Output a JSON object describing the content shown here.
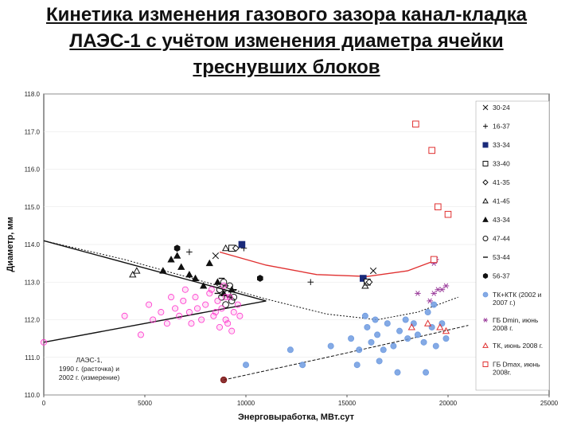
{
  "title_lines": [
    "Кинетика изменения газового зазора канал-кладка",
    "ЛАЭС-1 с учётом изменения диаметра ячейки",
    "треснувших блоков"
  ],
  "chart_data": {
    "type": "scatter",
    "xlabel": "Энерговыработка, МВт.сут",
    "ylabel": "Диаметр, мм",
    "xlim": [
      0,
      25000
    ],
    "ylim": [
      110.0,
      118.0
    ],
    "x_ticks": [
      "0",
      "5000",
      "10000",
      "15000",
      "20000",
      "25000"
    ],
    "y_ticks": [
      "110.0",
      "111.0",
      "112.0",
      "113.0",
      "114.0",
      "115.0",
      "116.0",
      "117.0",
      "118.0"
    ],
    "annotation": [
      "ЛАЭС-1,",
      "1990 г. (расточка) и",
      "2002 г. (измерение)"
    ],
    "colors": {
      "black": "#111111",
      "navy": "#1a2a7a",
      "magenta": "#ff33cc",
      "purple": "#9b3d9b",
      "red": "#e03030",
      "blue": "#6f9be0",
      "darkred": "#7a1010"
    },
    "series": [
      {
        "name": "30-24",
        "marker": "x",
        "color": "#111111",
        "points": [
          [
            8500,
            113.7
          ],
          [
            16300,
            113.3
          ]
        ]
      },
      {
        "name": "16-37",
        "marker": "plus",
        "color": "#111111",
        "points": [
          [
            7200,
            113.8
          ],
          [
            13200,
            113.0
          ],
          [
            9900,
            113.9
          ]
        ]
      },
      {
        "name": "33-34",
        "marker": "square-filled",
        "color": "#1a2a7a",
        "points": [
          [
            9800,
            114.0
          ],
          [
            15800,
            113.1
          ]
        ]
      },
      {
        "name": "33-40",
        "marker": "square-open",
        "color": "#111111",
        "points": [
          [
            9300,
            113.9
          ],
          [
            16000,
            113.0
          ]
        ]
      },
      {
        "name": "41-35",
        "marker": "diamond-open",
        "color": "#111111",
        "points": [
          [
            9500,
            113.9
          ],
          [
            16100,
            113.0
          ]
        ]
      },
      {
        "name": "41-45",
        "marker": "triangle-open",
        "color": "#111111",
        "points": [
          [
            4400,
            113.2
          ],
          [
            9000,
            113.9
          ],
          [
            15900,
            112.9
          ],
          [
            4600,
            113.3
          ]
        ]
      },
      {
        "name": "43-34",
        "marker": "triangle-filled",
        "color": "#111111",
        "points": [
          [
            6300,
            113.6
          ],
          [
            6800,
            113.4
          ],
          [
            7500,
            113.1
          ],
          [
            7900,
            112.9
          ],
          [
            8600,
            113.0
          ],
          [
            8900,
            112.7
          ],
          [
            9300,
            112.8
          ],
          [
            5900,
            113.3
          ],
          [
            7200,
            113.2
          ],
          [
            8200,
            113.5
          ],
          [
            6600,
            113.7
          ]
        ]
      },
      {
        "name": "47-44",
        "marker": "circle-open",
        "color": "#111111",
        "points": [
          [
            8800,
            112.6
          ],
          [
            9200,
            112.9
          ],
          [
            9000,
            112.4
          ],
          [
            9400,
            112.6
          ],
          [
            8700,
            112.8
          ],
          [
            9100,
            112.7
          ],
          [
            8900,
            113.0
          ],
          [
            9300,
            112.5
          ]
        ]
      },
      {
        "name": "53-44",
        "marker": "dash",
        "color": "#111111",
        "points": [
          [
            8600,
            112.7
          ],
          [
            9000,
            112.9
          ],
          [
            9200,
            112.6
          ],
          [
            8800,
            113.1
          ],
          [
            9400,
            112.8
          ]
        ]
      },
      {
        "name": "56-37",
        "marker": "hexagon-filled",
        "color": "#111111",
        "points": [
          [
            6600,
            113.9
          ],
          [
            10700,
            113.1
          ]
        ]
      },
      {
        "name": "ТК+КТК (2002 и 2007 г.)",
        "marker": "circle-filled",
        "color": "#6f9be0",
        "points": [
          [
            10000,
            110.8
          ],
          [
            12200,
            111.2
          ],
          [
            12800,
            110.8
          ],
          [
            14200,
            111.3
          ],
          [
            15200,
            111.5
          ],
          [
            15600,
            111.2
          ],
          [
            16000,
            111.8
          ],
          [
            16200,
            111.4
          ],
          [
            16500,
            111.6
          ],
          [
            16800,
            111.2
          ],
          [
            17000,
            111.9
          ],
          [
            17300,
            111.3
          ],
          [
            17600,
            111.7
          ],
          [
            18000,
            111.5
          ],
          [
            18300,
            111.9
          ],
          [
            18500,
            111.6
          ],
          [
            18800,
            111.4
          ],
          [
            19000,
            112.2
          ],
          [
            19200,
            111.8
          ],
          [
            19400,
            111.3
          ],
          [
            19700,
            111.9
          ],
          [
            19900,
            111.5
          ],
          [
            15500,
            110.8
          ],
          [
            17500,
            110.6
          ],
          [
            18900,
            110.6
          ],
          [
            16400,
            112.0
          ],
          [
            16600,
            110.9
          ],
          [
            15900,
            112.1
          ],
          [
            17900,
            112.0
          ],
          [
            19300,
            112.4
          ]
        ]
      },
      {
        "name": "ГБ Dmin, июнь 2008 г.",
        "marker": "asterisk",
        "color": "#9b3d9b",
        "points": [
          [
            18500,
            112.7
          ],
          [
            19300,
            112.7
          ],
          [
            19500,
            112.8
          ],
          [
            19700,
            112.8
          ],
          [
            19900,
            112.9
          ],
          [
            19100,
            112.5
          ],
          [
            19300,
            113.5
          ],
          [
            19400,
            113.6
          ]
        ]
      },
      {
        "name": "ТК, июнь 2008 г.",
        "marker": "triangle-open",
        "color": "#e03030",
        "points": [
          [
            18200,
            111.8
          ],
          [
            19000,
            111.9
          ],
          [
            19600,
            111.8
          ],
          [
            19900,
            111.7
          ]
        ]
      },
      {
        "name": "ГБ Dmax, июнь 2008г.",
        "marker": "square-open",
        "color": "#e03030",
        "points": [
          [
            18400,
            117.2
          ],
          [
            19200,
            116.5
          ],
          [
            19500,
            115.0
          ],
          [
            20000,
            114.8
          ],
          [
            19300,
            113.6
          ]
        ]
      },
      {
        "name": "",
        "marker": "circle-filled",
        "color": "#ff33cc",
        "points": [
          [
            0,
            111.4
          ],
          [
            4000,
            112.1
          ],
          [
            4800,
            111.6
          ],
          [
            5400,
            112.0
          ],
          [
            5800,
            112.2
          ],
          [
            6100,
            111.9
          ],
          [
            6500,
            112.3
          ],
          [
            6900,
            112.5
          ],
          [
            7200,
            112.2
          ],
          [
            7500,
            112.6
          ],
          [
            7800,
            112.0
          ],
          [
            8000,
            112.4
          ],
          [
            8200,
            112.7
          ],
          [
            8400,
            112.1
          ],
          [
            8600,
            112.5
          ],
          [
            8800,
            112.3
          ],
          [
            9000,
            112.0
          ],
          [
            9200,
            112.6
          ],
          [
            9400,
            112.2
          ],
          [
            9600,
            112.4
          ],
          [
            8700,
            111.8
          ],
          [
            9100,
            111.9
          ],
          [
            7000,
            112.8
          ],
          [
            6300,
            112.6
          ],
          [
            8900,
            112.9
          ],
          [
            5200,
            112.4
          ],
          [
            7600,
            112.3
          ],
          [
            8300,
            112.8
          ],
          [
            9300,
            111.7
          ],
          [
            9700,
            112.1
          ],
          [
            6700,
            112.1
          ],
          [
            8500,
            112.2
          ],
          [
            9000,
            112.6
          ],
          [
            7300,
            111.9
          ]
        ]
      },
      {
        "name": "",
        "marker": "circle-filled",
        "color": "#7a1010",
        "points": [
          [
            8900,
            110.4
          ]
        ]
      }
    ],
    "lines": [
      {
        "style": "solid",
        "color": "#111111",
        "points": [
          [
            0,
            114.1
          ],
          [
            11000,
            112.5
          ]
        ]
      },
      {
        "style": "solid",
        "color": "#111111",
        "points": [
          [
            0,
            111.4
          ],
          [
            11000,
            112.5
          ]
        ]
      },
      {
        "style": "dotted",
        "color": "#111111",
        "points": [
          [
            0,
            114.1
          ],
          [
            4000,
            113.6
          ],
          [
            8000,
            113.0
          ],
          [
            11000,
            112.55
          ],
          [
            14000,
            112.15
          ],
          [
            16500,
            112.0
          ],
          [
            18500,
            112.2
          ],
          [
            20500,
            112.6
          ]
        ]
      },
      {
        "style": "solid",
        "color": "#e03030",
        "points": [
          [
            8700,
            113.8
          ],
          [
            11000,
            113.45
          ],
          [
            13500,
            113.2
          ],
          [
            16000,
            113.15
          ],
          [
            18000,
            113.3
          ],
          [
            19500,
            113.6
          ]
        ]
      },
      {
        "style": "dashed",
        "color": "#111111",
        "points": [
          [
            8900,
            110.4
          ],
          [
            14000,
            111.0
          ],
          [
            19000,
            111.6
          ],
          [
            21000,
            111.85
          ]
        ]
      }
    ]
  }
}
